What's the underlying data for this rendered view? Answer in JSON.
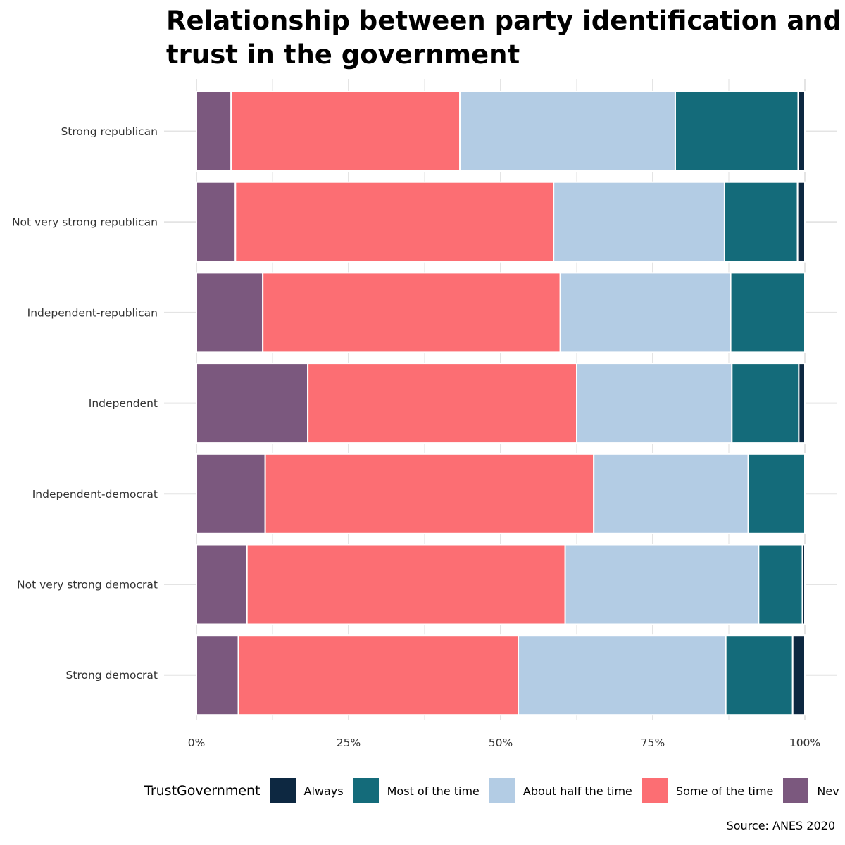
{
  "chart_data": {
    "type": "bar",
    "orientation": "horizontal",
    "stacked": "percent",
    "title": "Relationship between party identification and trust in the government",
    "caption": "Source: ANES 2020",
    "legend_title": "TrustGovernment",
    "legend_position": "bottom",
    "grid": true,
    "xlim": [
      0,
      100
    ],
    "xticks": [
      "0%",
      "25%",
      "50%",
      "75%",
      "100%"
    ],
    "categories": [
      "Strong republican",
      "Not very strong republican",
      "Independent-republican",
      "Independent",
      "Independent-democrat",
      "Not very strong democrat",
      "Strong democrat"
    ],
    "series": [
      {
        "name": "Never",
        "color": "#7b587e",
        "values": [
          5.7,
          6.4,
          10.9,
          18.3,
          11.3,
          8.3,
          6.9
        ]
      },
      {
        "name": "Some of the time",
        "color": "#fc6e73",
        "values": [
          37.6,
          52.3,
          48.9,
          44.2,
          54.0,
          52.3,
          46.0
        ]
      },
      {
        "name": "About half the time",
        "color": "#b3cce4",
        "values": [
          35.4,
          28.1,
          28.0,
          25.5,
          25.4,
          31.8,
          34.1
        ]
      },
      {
        "name": "Most of the time",
        "color": "#146b7a",
        "values": [
          20.2,
          12.0,
          12.2,
          11.0,
          9.3,
          7.2,
          11.0
        ]
      },
      {
        "name": "Always",
        "color": "#0d2841",
        "values": [
          1.1,
          1.2,
          0.0,
          1.0,
          0.0,
          0.4,
          2.0
        ]
      }
    ],
    "legend_order": [
      "Always",
      "Most of the time",
      "About half the time",
      "Some of the time",
      "Never"
    ],
    "legend_visible_labels": [
      "Always",
      "Most of the time",
      "About half the time",
      "Some of the time",
      "Nev"
    ]
  }
}
